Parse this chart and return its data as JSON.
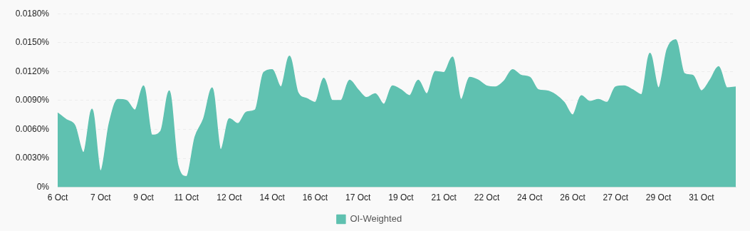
{
  "chart_data": {
    "type": "area",
    "categories": [
      "6 Oct",
      null,
      null,
      null,
      null,
      "7 Oct",
      null,
      null,
      null,
      null,
      "9 Oct",
      null,
      null,
      null,
      null,
      "11 Oct",
      null,
      null,
      null,
      null,
      "12 Oct",
      null,
      null,
      null,
      null,
      "14 Oct",
      null,
      null,
      null,
      null,
      "16 Oct",
      null,
      null,
      null,
      null,
      "17 Oct",
      null,
      null,
      null,
      null,
      "19 Oct",
      null,
      null,
      null,
      null,
      "21 Oct",
      null,
      null,
      null,
      null,
      "22 Oct",
      null,
      null,
      null,
      null,
      "24 Oct",
      null,
      null,
      null,
      null,
      "26 Oct",
      null,
      null,
      null,
      null,
      "27 Oct",
      null,
      null,
      null,
      null,
      "29 Oct",
      null,
      null,
      null,
      null,
      "31 Oct",
      null,
      null,
      null,
      null
    ],
    "series": [
      {
        "name": "OI-Weighted",
        "color": "#5fc1b0",
        "values": [
          0.0077,
          0.007,
          0.0064,
          0.0036,
          0.0081,
          0.0017,
          0.0066,
          0.0091,
          0.009,
          0.008,
          0.0105,
          0.0054,
          0.0058,
          0.01,
          0.0023,
          0.0011,
          0.0052,
          0.0071,
          0.0103,
          0.0039,
          0.0071,
          0.0066,
          0.0078,
          0.008,
          0.0119,
          0.0122,
          0.0104,
          0.0136,
          0.0098,
          0.0092,
          0.0088,
          0.0113,
          0.009,
          0.009,
          0.0111,
          0.0101,
          0.0093,
          0.0097,
          0.0086,
          0.0105,
          0.0101,
          0.0095,
          0.0111,
          0.0097,
          0.012,
          0.0119,
          0.0135,
          0.0091,
          0.0114,
          0.0111,
          0.0105,
          0.0104,
          0.011,
          0.0122,
          0.0116,
          0.0114,
          0.0101,
          0.01,
          0.0096,
          0.0088,
          0.0075,
          0.0095,
          0.0089,
          0.0091,
          0.0088,
          0.0104,
          0.0105,
          0.0101,
          0.0096,
          0.0139,
          0.0103,
          0.0143,
          0.0153,
          0.0118,
          0.0116,
          0.01,
          0.0111,
          0.0125,
          0.0103,
          0.0104
        ]
      }
    ],
    "ylim": [
      0,
      0.018
    ],
    "yticks": [
      {
        "value": 0,
        "label": "0%"
      },
      {
        "value": 0.003,
        "label": "0.0030%"
      },
      {
        "value": 0.006,
        "label": "0.0060%"
      },
      {
        "value": 0.009,
        "label": "0.0090%"
      },
      {
        "value": 0.012,
        "label": "0.0120%"
      },
      {
        "value": 0.015,
        "label": "0.0150%"
      },
      {
        "value": 0.018,
        "label": "0.0180%"
      }
    ],
    "grid": "y",
    "legend": "bottom"
  }
}
